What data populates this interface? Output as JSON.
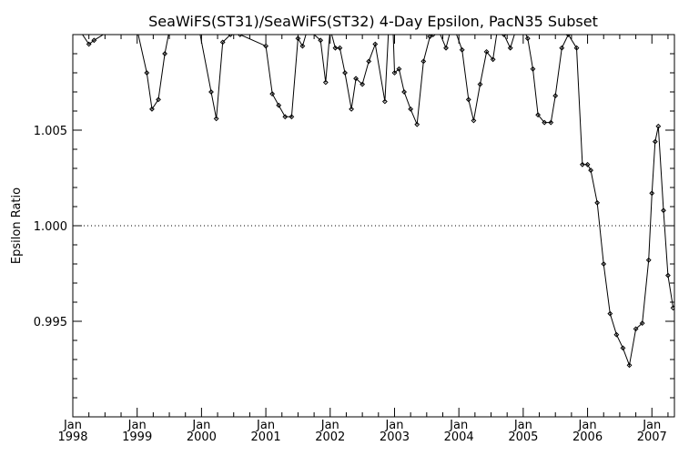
{
  "chart_data": {
    "type": "line",
    "title": "SeaWiFS(ST31)/SeaWiFS(ST32) 4-Day Epsilon, PacN35 Subset",
    "xlabel": "",
    "ylabel": "Epsilon Ratio",
    "xlim": [
      1998.0,
      2007.35
    ],
    "ylim": [
      0.99,
      1.01
    ],
    "reference_line": 1.0,
    "x_ticks": [
      {
        "value": 1998,
        "month": "Jan",
        "year": "1998"
      },
      {
        "value": 1999,
        "month": "Jan",
        "year": "1999"
      },
      {
        "value": 2000,
        "month": "Jan",
        "year": "2000"
      },
      {
        "value": 2001,
        "month": "Jan",
        "year": "2001"
      },
      {
        "value": 2002,
        "month": "Jan",
        "year": "2002"
      },
      {
        "value": 2003,
        "month": "Jan",
        "year": "2003"
      },
      {
        "value": 2004,
        "month": "Jan",
        "year": "2004"
      },
      {
        "value": 2005,
        "month": "Jan",
        "year": "2005"
      },
      {
        "value": 2006,
        "month": "Jan",
        "year": "2006"
      },
      {
        "value": 2007,
        "month": "Jan",
        "year": "2007"
      }
    ],
    "y_ticks": [
      {
        "value": 0.995,
        "label": "0.995"
      },
      {
        "value": 1.0,
        "label": "1.000"
      },
      {
        "value": 1.005,
        "label": "1.005"
      }
    ],
    "series": [
      {
        "x": [
          1998.05,
          1998.25,
          1998.33,
          1998.95,
          1999.15,
          1999.23,
          1999.33,
          1999.43,
          1999.5,
          1999.6,
          1999.95,
          2000.15,
          2000.23,
          2000.33,
          2000.45,
          2000.6,
          2001.0,
          2001.1,
          2001.2,
          2001.3,
          2001.4,
          2001.5,
          2001.57,
          2001.65,
          2001.85,
          2001.93,
          2002.0,
          2002.08,
          2002.15,
          2002.23,
          2002.33,
          2002.4,
          2002.5,
          2002.6,
          2002.7,
          2002.85,
          2002.95,
          2003.0,
          2003.07,
          2003.15,
          2003.25,
          2003.35,
          2003.45,
          2003.55,
          2003.6,
          2003.7,
          2003.8,
          2003.9,
          2004.05,
          2004.15,
          2004.23,
          2004.33,
          2004.43,
          2004.53,
          2004.6,
          2004.7,
          2004.8,
          2004.9,
          2005.0,
          2005.07,
          2005.15,
          2005.23,
          2005.33,
          2005.43,
          2005.5,
          2005.6,
          2005.7,
          2005.83,
          2005.92,
          2006.0,
          2006.05,
          2006.15,
          2006.25,
          2006.35,
          2006.45,
          2006.55,
          2006.65,
          2006.75,
          2006.85,
          2006.95,
          2007.0,
          2007.05,
          2007.1,
          2007.18,
          2007.25,
          2007.33
        ],
        "y": [
          1.0105,
          1.0095,
          1.0097,
          1.011,
          1.008,
          1.0061,
          1.0066,
          1.009,
          1.0102,
          1.011,
          1.0105,
          1.007,
          1.0056,
          1.0096,
          1.01,
          1.01,
          1.0094,
          1.0069,
          1.0063,
          1.0057,
          1.0057,
          1.0098,
          1.0094,
          1.0103,
          1.0097,
          1.0075,
          1.0103,
          1.0093,
          1.0093,
          1.008,
          1.0061,
          1.0077,
          1.0074,
          1.0086,
          1.0095,
          1.0065,
          1.013,
          1.008,
          1.0082,
          1.007,
          1.0061,
          1.0053,
          1.0086,
          1.0099,
          1.01,
          1.0101,
          1.0093,
          1.0106,
          1.0092,
          1.0066,
          1.0055,
          1.0074,
          1.0091,
          1.0087,
          1.0103,
          1.01,
          1.0093,
          1.0104,
          1.0103,
          1.0098,
          1.0082,
          1.0058,
          1.0054,
          1.0054,
          1.0068,
          1.0093,
          1.01,
          1.0093,
          1.0032,
          1.0032,
          1.0029,
          1.0012,
          0.998,
          0.9954,
          0.9943,
          0.9936,
          0.9927,
          0.9946,
          0.9949,
          0.9982,
          1.0017,
          1.0044,
          1.0052,
          1.0008,
          0.9974,
          0.9957
        ]
      }
    ]
  }
}
